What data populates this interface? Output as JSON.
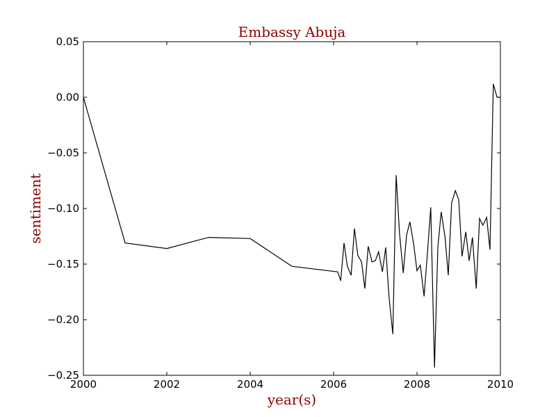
{
  "chart_data": {
    "type": "line",
    "title": "Embassy Abuja",
    "xlabel": "year(s)",
    "ylabel": "sentiment",
    "xlim": [
      2000,
      2010
    ],
    "ylim": [
      -0.25,
      0.05
    ],
    "x_ticks": [
      2000,
      2002,
      2004,
      2006,
      2008,
      2010
    ],
    "x_tick_labels": [
      "2000",
      "2002",
      "2004",
      "2006",
      "2008",
      "2010"
    ],
    "y_ticks": [
      0.05,
      0.0,
      -0.05,
      -0.1,
      -0.15,
      -0.2,
      -0.25
    ],
    "y_tick_labels": [
      "0.05",
      "0.00",
      "−0.05",
      "−0.10",
      "−0.15",
      "−0.20",
      "−0.25"
    ],
    "grid": false,
    "line_color": "#000000",
    "label_color": "#8b0000",
    "series": [
      {
        "x": [
          2000.0,
          2001.0,
          2002.0,
          2003.0,
          2004.0,
          2005.0,
          2006.1,
          2006.17,
          2006.25,
          2006.33,
          2006.42,
          2006.5,
          2006.58,
          2006.67,
          2006.75,
          2006.83,
          2006.92,
          2007.0,
          2007.08,
          2007.17,
          2007.25,
          2007.33,
          2007.42,
          2007.5,
          2007.58,
          2007.67,
          2007.75,
          2007.83,
          2007.92,
          2008.0,
          2008.08,
          2008.17,
          2008.25,
          2008.33,
          2008.42,
          2008.5,
          2008.58,
          2008.67,
          2008.75,
          2008.83,
          2008.92,
          2009.0,
          2009.08,
          2009.17,
          2009.25,
          2009.33,
          2009.42,
          2009.5,
          2009.58,
          2009.67,
          2009.75,
          2009.83,
          2009.92,
          2010.0
        ],
        "y": [
          0.0,
          -0.131,
          -0.136,
          -0.126,
          -0.127,
          -0.152,
          -0.157,
          -0.165,
          -0.131,
          -0.152,
          -0.16,
          -0.118,
          -0.142,
          -0.148,
          -0.172,
          -0.134,
          -0.148,
          -0.147,
          -0.139,
          -0.157,
          -0.135,
          -0.18,
          -0.213,
          -0.07,
          -0.122,
          -0.158,
          -0.124,
          -0.112,
          -0.132,
          -0.156,
          -0.151,
          -0.179,
          -0.14,
          -0.099,
          -0.243,
          -0.135,
          -0.103,
          -0.125,
          -0.16,
          -0.095,
          -0.084,
          -0.092,
          -0.143,
          -0.121,
          -0.147,
          -0.126,
          -0.172,
          -0.109,
          -0.115,
          -0.108,
          -0.137,
          0.012,
          0.0,
          0.0
        ]
      }
    ]
  }
}
